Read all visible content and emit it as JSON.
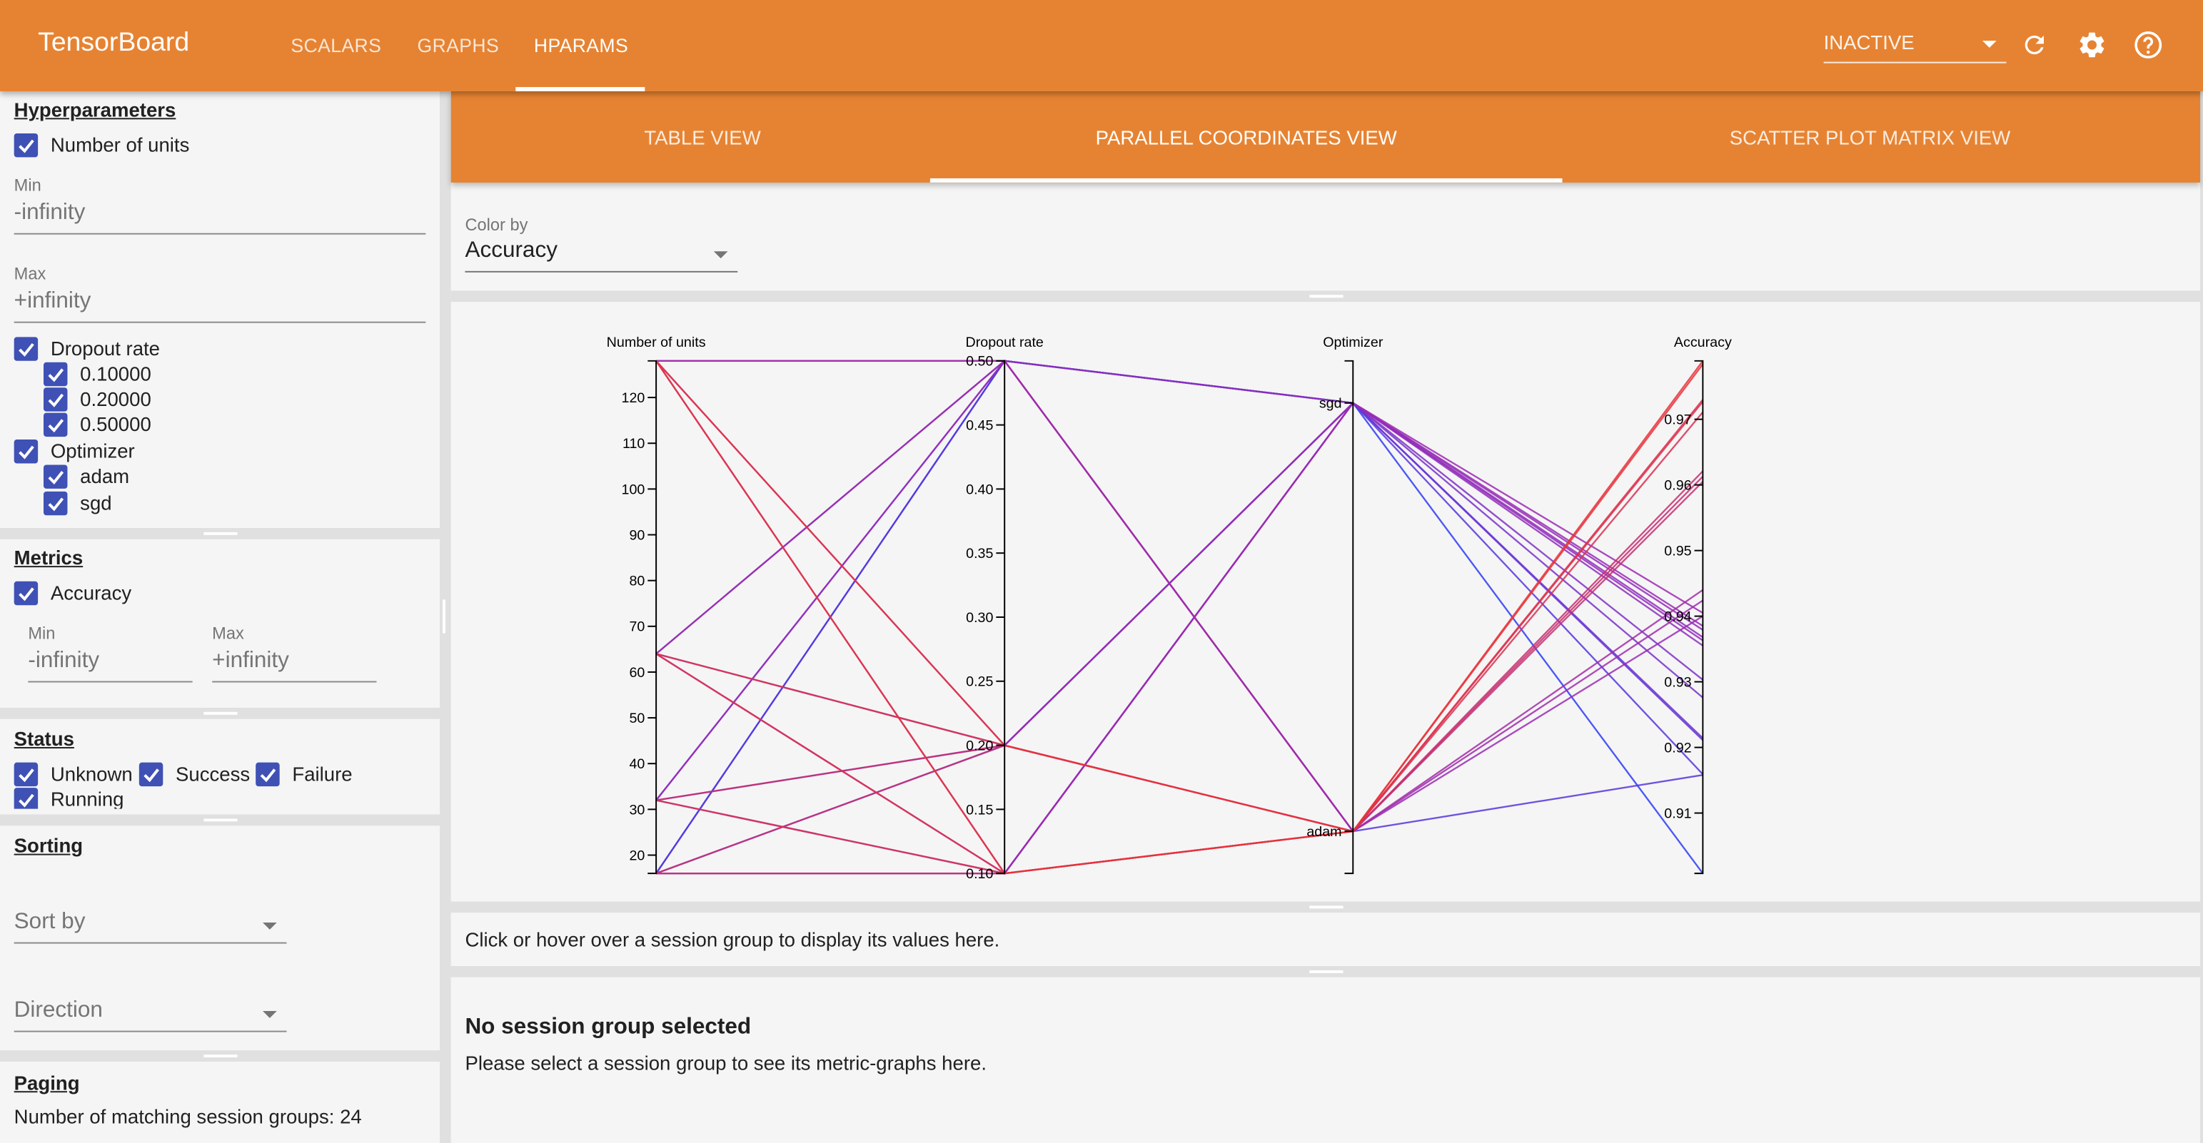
{
  "header": {
    "brand": "TensorBoard",
    "tabs": [
      {
        "label": "SCALARS"
      },
      {
        "label": "GRAPHS"
      },
      {
        "label": "HPARAMS"
      }
    ],
    "active_tab": "HPARAMS",
    "run_selector": "INACTIVE",
    "icons": [
      "refresh-icon",
      "settings-gear-icon",
      "help-icon"
    ],
    "color": "#e68332"
  },
  "sidebar": {
    "hyperparameters": {
      "title": "Hyperparameters",
      "units": {
        "label": "Number of units",
        "checked": true,
        "min_label": "Min",
        "min_value": "-infinity",
        "max_label": "Max",
        "max_value": "+infinity"
      },
      "dropout": {
        "label": "Dropout rate",
        "checked": true,
        "values": [
          {
            "label": "0.10000",
            "checked": true
          },
          {
            "label": "0.20000",
            "checked": true
          },
          {
            "label": "0.50000",
            "checked": true
          }
        ]
      },
      "optimizer": {
        "label": "Optimizer",
        "checked": true,
        "values": [
          {
            "label": "adam",
            "checked": true
          },
          {
            "label": "sgd",
            "checked": true
          }
        ]
      }
    },
    "metrics": {
      "title": "Metrics",
      "accuracy": {
        "label": "Accuracy",
        "checked": true
      },
      "min_label": "Min",
      "min_value": "-infinity",
      "max_label": "Max",
      "max_value": "+infinity"
    },
    "status": {
      "title": "Status",
      "items": [
        {
          "label": "Unknown",
          "checked": true
        },
        {
          "label": "Success",
          "checked": true
        },
        {
          "label": "Failure",
          "checked": true
        },
        {
          "label": "Running",
          "checked": true
        }
      ]
    },
    "sorting": {
      "title": "Sorting",
      "sort_by_placeholder": "Sort by",
      "direction_placeholder": "Direction"
    },
    "paging": {
      "title": "Paging",
      "matching": "Number of matching session groups: 24"
    }
  },
  "subtabs": {
    "items": [
      {
        "label": "TABLE VIEW"
      },
      {
        "label": "PARALLEL COORDINATES VIEW"
      },
      {
        "label": "SCATTER PLOT MATRIX VIEW"
      }
    ],
    "active": "PARALLEL COORDINATES VIEW"
  },
  "color_by": {
    "label": "Color by",
    "value": "Accuracy"
  },
  "hover_info": "Click or hover over a session group to display its values here.",
  "selection": {
    "title": "No session group selected",
    "message": "Please select a session group to see its metric-graphs here."
  },
  "chart_data": {
    "type": "parallel_coordinates",
    "axes": [
      {
        "name": "Number of units",
        "kind": "linear",
        "range": [
          16,
          128
        ],
        "ticks": [
          20,
          30,
          40,
          50,
          60,
          70,
          80,
          90,
          100,
          110,
          120
        ],
        "tick_labels": [
          "20",
          "30",
          "40",
          "50",
          "60",
          "70",
          "80",
          "90",
          "100",
          "110",
          "120"
        ]
      },
      {
        "name": "Dropout rate",
        "kind": "linear",
        "range": [
          0.1,
          0.5
        ],
        "ticks": [
          0.1,
          0.15,
          0.2,
          0.25,
          0.3,
          0.35,
          0.4,
          0.45,
          0.5
        ],
        "tick_labels": [
          "0.10",
          "0.15",
          "0.20",
          "0.25",
          "0.30",
          "0.35",
          "0.40",
          "0.45",
          "0.50"
        ]
      },
      {
        "name": "Optimizer",
        "kind": "categorical",
        "categories": [
          "sgd",
          "adam"
        ],
        "tick_labels": [
          "sgd",
          "adam"
        ]
      },
      {
        "name": "Accuracy",
        "kind": "linear",
        "range": [
          0.9008,
          0.9789
        ],
        "ticks": [
          0.91,
          0.92,
          0.93,
          0.94,
          0.95,
          0.96,
          0.97
        ],
        "tick_labels": [
          "0.91",
          "0.92",
          "0.93",
          "0.94",
          "0.95",
          "0.96",
          "0.97"
        ]
      }
    ],
    "color_by": "Accuracy",
    "color_scale": [
      "#2d3cf5",
      "#9a2cb4",
      "#e8323a"
    ],
    "rows": [
      {
        "units": 128,
        "dropout": 0.1,
        "optimizer": "adam",
        "accuracy": 0.9789
      },
      {
        "units": 64,
        "dropout": 0.1,
        "optimizer": "adam",
        "accuracy": 0.973
      },
      {
        "units": 32,
        "dropout": 0.1,
        "optimizer": "adam",
        "accuracy": 0.9711
      },
      {
        "units": 16,
        "dropout": 0.1,
        "optimizer": "adam",
        "accuracy": 0.9613
      },
      {
        "units": 128,
        "dropout": 0.2,
        "optimizer": "adam",
        "accuracy": 0.9784
      },
      {
        "units": 64,
        "dropout": 0.2,
        "optimizer": "adam",
        "accuracy": 0.9727
      },
      {
        "units": 32,
        "dropout": 0.2,
        "optimizer": "adam",
        "accuracy": 0.9621
      },
      {
        "units": 16,
        "dropout": 0.2,
        "optimizer": "adam",
        "accuracy": 0.9605
      },
      {
        "units": 128,
        "dropout": 0.5,
        "optimizer": "adam",
        "accuracy": 0.944
      },
      {
        "units": 64,
        "dropout": 0.5,
        "optimizer": "adam",
        "accuracy": 0.9424
      },
      {
        "units": 32,
        "dropout": 0.5,
        "optimizer": "adam",
        "accuracy": 0.94
      },
      {
        "units": 16,
        "dropout": 0.5,
        "optimizer": "adam",
        "accuracy": 0.9158
      },
      {
        "units": 128,
        "dropout": 0.1,
        "optimizer": "sgd",
        "accuracy": 0.9405
      },
      {
        "units": 64,
        "dropout": 0.1,
        "optimizer": "sgd",
        "accuracy": 0.9385
      },
      {
        "units": 32,
        "dropout": 0.1,
        "optimizer": "sgd",
        "accuracy": 0.9363
      },
      {
        "units": 16,
        "dropout": 0.1,
        "optimizer": "sgd",
        "accuracy": 0.9276
      },
      {
        "units": 128,
        "dropout": 0.2,
        "optimizer": "sgd",
        "accuracy": 0.9379
      },
      {
        "units": 64,
        "dropout": 0.2,
        "optimizer": "sgd",
        "accuracy": 0.9368
      },
      {
        "units": 32,
        "dropout": 0.2,
        "optimizer": "sgd",
        "accuracy": 0.9303
      },
      {
        "units": 16,
        "dropout": 0.2,
        "optimizer": "sgd",
        "accuracy": 0.9214
      },
      {
        "units": 128,
        "dropout": 0.5,
        "optimizer": "sgd",
        "accuracy": 0.9355
      },
      {
        "units": 64,
        "dropout": 0.5,
        "optimizer": "sgd",
        "accuracy": 0.9211
      },
      {
        "units": 32,
        "dropout": 0.5,
        "optimizer": "sgd",
        "accuracy": 0.9159
      },
      {
        "units": 16,
        "dropout": 0.5,
        "optimizer": "sgd",
        "accuracy": 0.9008
      }
    ]
  }
}
